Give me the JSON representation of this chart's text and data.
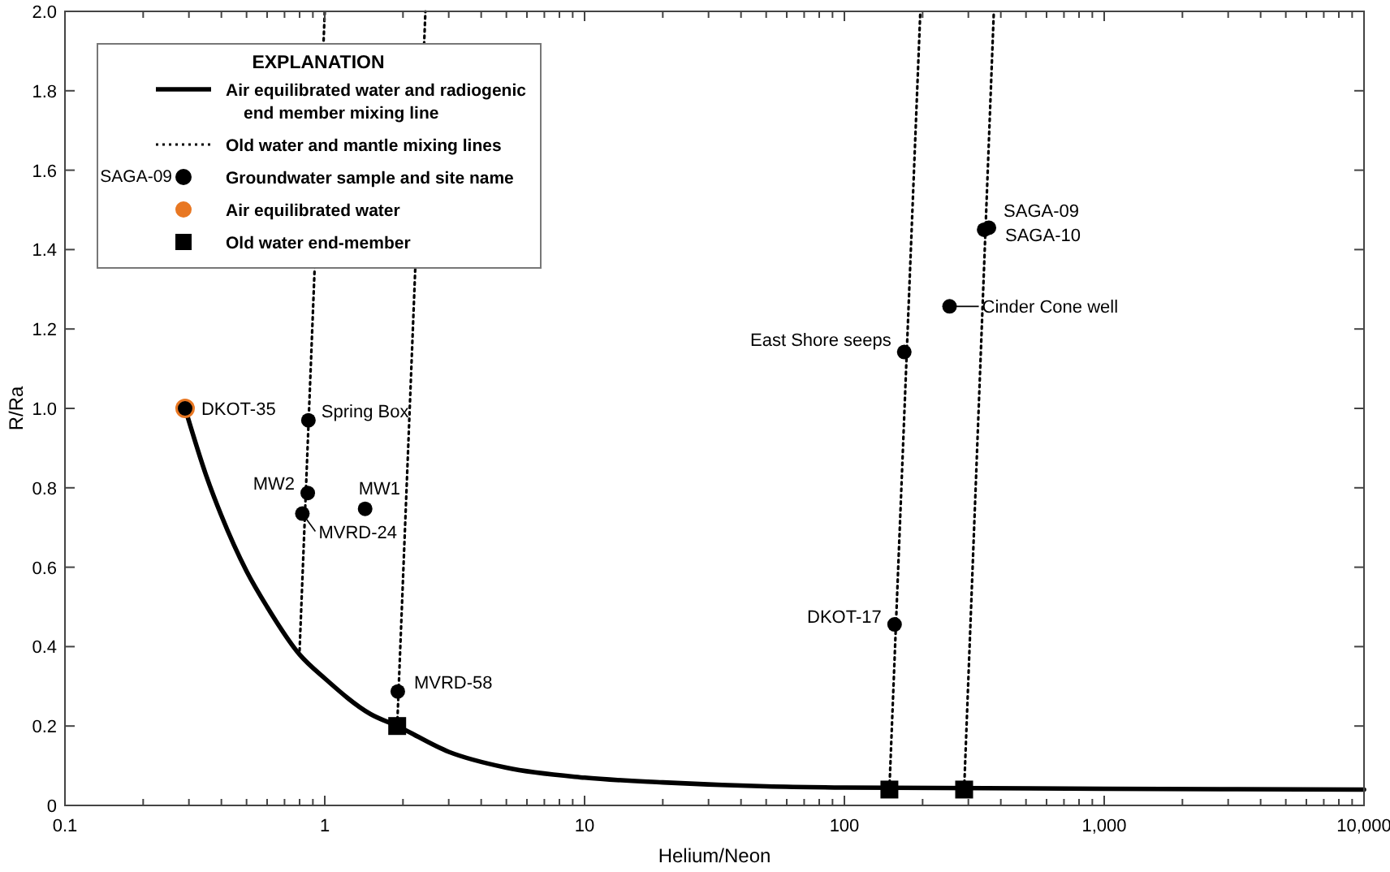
{
  "chart_data": {
    "type": "scatter",
    "xlabel": "Helium/Neon",
    "ylabel": "R/Ra",
    "log": "x",
    "grid": false,
    "legend": "top left",
    "legend_title": "EXPLANATION",
    "xlim": [
      0.1,
      10000
    ],
    "ylim": [
      0,
      2
    ],
    "xticks": [
      0.1,
      {
        "value": 0.2,
        "label": null
      },
      {
        "value": 0.3,
        "label": null
      },
      {
        "value": 0.4,
        "label": null
      },
      {
        "value": 0.5,
        "label": null
      },
      {
        "value": 0.6,
        "label": null
      },
      {
        "value": 0.7,
        "label": null
      },
      {
        "value": 0.8,
        "label": null
      },
      {
        "value": 0.9,
        "label": null
      },
      1,
      {
        "value": 2,
        "label": null
      },
      {
        "value": 3,
        "label": null
      },
      {
        "value": 4,
        "label": null
      },
      {
        "value": 5,
        "label": null
      },
      {
        "value": 6,
        "label": null
      },
      {
        "value": 7,
        "label": null
      },
      {
        "value": 8,
        "label": null
      },
      {
        "value": 9,
        "label": null
      },
      10,
      {
        "value": 20,
        "label": null
      },
      {
        "value": 30,
        "label": null
      },
      {
        "value": 40,
        "label": null
      },
      {
        "value": 50,
        "label": null
      },
      {
        "value": 60,
        "label": null
      },
      {
        "value": 70,
        "label": null
      },
      {
        "value": 80,
        "label": null
      },
      {
        "value": 90,
        "label": null
      },
      100,
      {
        "value": 200,
        "label": null
      },
      {
        "value": 300,
        "label": null
      },
      {
        "value": 400,
        "label": null
      },
      {
        "value": 500,
        "label": null
      },
      {
        "value": 600,
        "label": null
      },
      {
        "value": 700,
        "label": null
      },
      {
        "value": 800,
        "label": null
      },
      {
        "value": 900,
        "label": null
      },
      {
        "value": 1000,
        "label": "1,000"
      },
      {
        "value": 2000,
        "label": null
      },
      {
        "value": 3000,
        "label": null
      },
      {
        "value": 4000,
        "label": null
      },
      {
        "value": 5000,
        "label": null
      },
      {
        "value": 6000,
        "label": null
      },
      {
        "value": 7000,
        "label": null
      },
      {
        "value": 8000,
        "label": null
      },
      {
        "value": 9000,
        "label": null
      },
      {
        "value": 10000,
        "label": "10,000"
      }
    ],
    "yticks": [
      0,
      0.2,
      0.4,
      0.6,
      0.8,
      {
        "value": 1,
        "label": "1.0"
      },
      1.2,
      1.4,
      1.6,
      1.8,
      {
        "value": 2,
        "label": "2.0"
      }
    ],
    "series": [
      {
        "type": "line",
        "name": "Air equilibrated water and radiogenic end member mixing line",
        "color": "#000000",
        "line_style": "solid",
        "x": [
          0.29,
          0.35,
          0.4,
          0.5,
          0.6,
          0.8,
          1,
          1.5,
          1.9,
          3,
          5,
          10,
          20,
          50,
          100,
          1000,
          10000
        ],
        "values": [
          1.0,
          0.83,
          0.73,
          0.59,
          0.5,
          0.38,
          0.32,
          0.23,
          0.2,
          0.135,
          0.095,
          0.07,
          0.058,
          0.048,
          0.045,
          0.042,
          0.04
        ]
      },
      {
        "type": "line",
        "name": "Old water and mantle mixing lines",
        "color": "#000000",
        "line_style": "dotted",
        "x": [
          0.8,
          1.0
        ],
        "values": [
          0.39,
          2.0
        ]
      },
      {
        "type": "line",
        "color": "#000000",
        "line_style": "dotted",
        "x": [
          1.9,
          2.44
        ],
        "values": [
          0.2,
          2.0
        ]
      },
      {
        "type": "line",
        "color": "#000000",
        "line_style": "dotted",
        "x": [
          149,
          196
        ],
        "values": [
          0.04,
          2.0
        ]
      },
      {
        "type": "line",
        "color": "#000000",
        "line_style": "dotted",
        "x": [
          289,
          376
        ],
        "values": [
          0.04,
          2.0
        ]
      },
      {
        "type": "scatter",
        "name": "Groundwater sample and site name",
        "color": "#000000",
        "marker": "circle",
        "x": [
          0.29,
          0.865,
          0.86,
          0.82,
          1.43,
          1.91,
          156,
          170,
          254,
          345,
          360
        ],
        "values": [
          1.0,
          0.97,
          0.787,
          0.735,
          0.747,
          0.287,
          0.456,
          1.142,
          1.257,
          1.45,
          1.455
        ]
      },
      {
        "type": "scatter",
        "name": "Air equilibrated water",
        "color": "#e87722",
        "marker": "circle",
        "x": [
          0.29
        ],
        "values": [
          1.0
        ]
      },
      {
        "type": "scatter",
        "name": "Old water end-member",
        "color": "#000000",
        "marker": "square",
        "x": [
          1.9,
          149,
          289
        ],
        "values": [
          0.2,
          0.04,
          0.04
        ]
      }
    ],
    "annotations": [
      {
        "text": "DKOT-35",
        "x": 0.29,
        "y": 1.0
      },
      {
        "text": "Spring Box",
        "x": 0.865,
        "y": 0.97
      },
      {
        "text": "MW2",
        "x": 0.86,
        "y": 0.787
      },
      {
        "text": "MVRD-24",
        "x": 0.82,
        "y": 0.735
      },
      {
        "text": "MW1",
        "x": 1.43,
        "y": 0.747
      },
      {
        "text": "MVRD-58",
        "x": 1.91,
        "y": 0.287
      },
      {
        "text": "DKOT-17",
        "x": 156,
        "y": 0.456
      },
      {
        "text": "East Shore seeps",
        "x": 170,
        "y": 1.142
      },
      {
        "text": "Cinder Cone well",
        "x": 254,
        "y": 1.257
      },
      {
        "text": "SAGA-09",
        "x": 345,
        "y": 1.45
      },
      {
        "text": "SAGA-10",
        "x": 360,
        "y": 1.455
      },
      "SAGA-09"
    ]
  }
}
